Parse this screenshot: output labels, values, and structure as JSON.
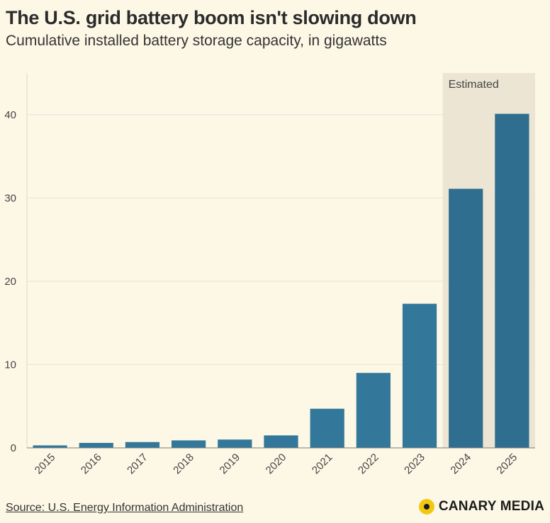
{
  "chart_data": {
    "type": "bar",
    "title": "The U.S. grid battery boom isn't slowing down",
    "subtitle": "Cumulative installed battery storage capacity, in gigawatts",
    "categories": [
      "2015",
      "2016",
      "2017",
      "2018",
      "2019",
      "2020",
      "2021",
      "2022",
      "2023",
      "2024",
      "2025"
    ],
    "values": [
      0.3,
      0.6,
      0.7,
      0.9,
      1.0,
      1.5,
      4.7,
      9.0,
      17.3,
      31.1,
      40.1
    ],
    "estimated_from_index": 9,
    "estimated_label": "Estimated",
    "ylim": [
      0,
      45
    ],
    "yticks": [
      0,
      10,
      20,
      30,
      40
    ],
    "xlabel": "",
    "ylabel": "",
    "grid": true,
    "colors": {
      "bar": "#33789b",
      "bar_estimated": "#306e8f",
      "estimated_band": "#ece5d4",
      "gridline": "#e6e4dc",
      "background": "#fdf8e6"
    }
  },
  "footer": {
    "source": "Source: U.S. Energy Information Administration",
    "brand": "CANARY MEDIA",
    "brand_color": "#f2c70f"
  }
}
